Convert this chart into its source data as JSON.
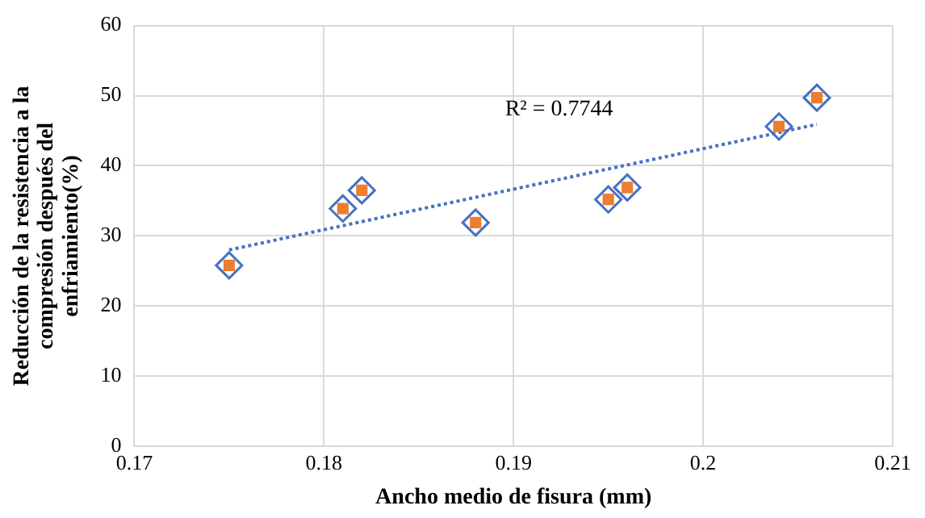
{
  "chart_data": {
    "type": "scatter",
    "xlabel": "Ancho medio de fisura (mm)",
    "ylabel": "Reducción de la resistencia a la\ncompresión después del\nenfriamiento(%)",
    "x": [
      0.175,
      0.181,
      0.182,
      0.188,
      0.195,
      0.196,
      0.204,
      0.206
    ],
    "series": [
      {
        "color": "#4472c4",
        "marker": "diamond",
        "values": [
          25.8,
          33.9,
          36.5,
          31.9,
          35.2,
          36.9,
          45.6,
          49.7
        ]
      },
      {
        "color": "#ed7d31",
        "marker": "square",
        "values": [
          25.8,
          33.9,
          36.5,
          31.9,
          35.2,
          36.9,
          45.6,
          49.7
        ]
      },
      {
        "type": "line",
        "color": "#4472c4",
        "line_style": "dotted",
        "x": [
          0.175,
          0.206
        ],
        "values": [
          28.0,
          45.9
        ]
      }
    ],
    "xlim": [
      0.17,
      0.21
    ],
    "xticks": [
      0.17,
      0.18,
      0.19,
      0.2,
      0.21
    ],
    "ylim": [
      0,
      60
    ],
    "yticks": [
      0,
      10,
      20,
      30,
      40,
      50,
      60
    ],
    "grid": true,
    "legend": false,
    "annotations": [
      "R² = 0.7744"
    ]
  }
}
